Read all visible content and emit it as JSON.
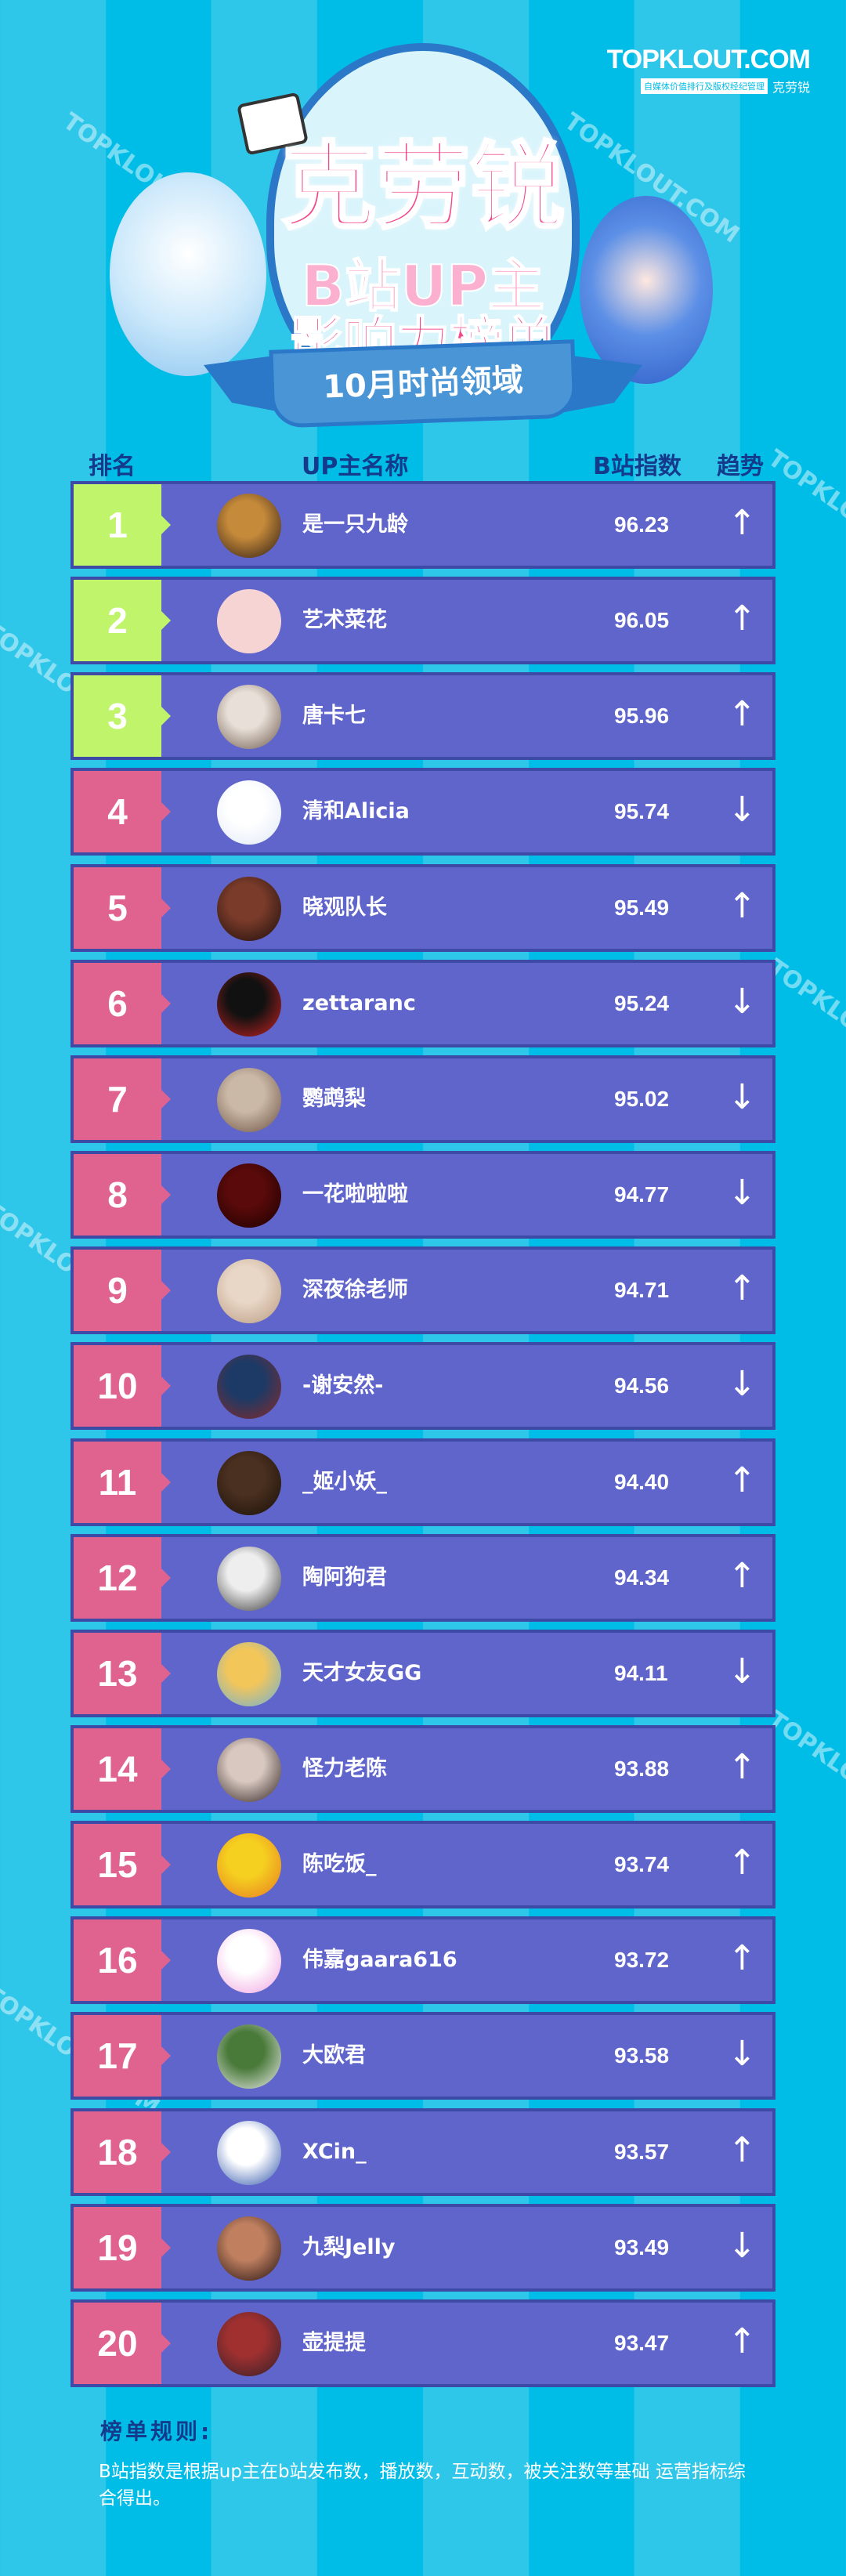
{
  "brand": {
    "logo": "TOPKLOUT.COM",
    "tagline": "自媒体价值排行及版权经纪管理",
    "name": "克劳锐"
  },
  "watermark": "TOPKLOUT.COM",
  "hero": {
    "title": "克劳锐",
    "line2": "B站UP主",
    "line3": "影响力榜单",
    "ribbon": "10月时尚领域"
  },
  "columns": {
    "rank": "排名",
    "name": "UP主名称",
    "index": "B站指数",
    "trend": "趋势"
  },
  "colors": {
    "top3": "#c0f46a",
    "other": "#e0628e",
    "row": "#6065cc",
    "border": "#3d4aa6",
    "header_text": "#143a8c"
  },
  "rows": [
    {
      "rank": "1",
      "name": "是一只九龄",
      "score": "96.23",
      "trend": "up"
    },
    {
      "rank": "2",
      "name": "艺术菜花",
      "score": "96.05",
      "trend": "up"
    },
    {
      "rank": "3",
      "name": "唐卡七",
      "score": "95.96",
      "trend": "up"
    },
    {
      "rank": "4",
      "name": "清和Alicia",
      "score": "95.74",
      "trend": "down"
    },
    {
      "rank": "5",
      "name": "晓观队长",
      "score": "95.49",
      "trend": "up"
    },
    {
      "rank": "6",
      "name": "zettaranc",
      "score": "95.24",
      "trend": "down"
    },
    {
      "rank": "7",
      "name": "鹦鹉梨",
      "score": "95.02",
      "trend": "down"
    },
    {
      "rank": "8",
      "name": "一花啦啦啦",
      "score": "94.77",
      "trend": "down"
    },
    {
      "rank": "9",
      "name": "深夜徐老师",
      "score": "94.71",
      "trend": "up"
    },
    {
      "rank": "10",
      "name": "-谢安然-",
      "score": "94.56",
      "trend": "down"
    },
    {
      "rank": "11",
      "name": "_姬小妖_",
      "score": "94.40",
      "trend": "up"
    },
    {
      "rank": "12",
      "name": "陶阿狗君",
      "score": "94.34",
      "trend": "up"
    },
    {
      "rank": "13",
      "name": "天才女友GG",
      "score": "94.11",
      "trend": "down"
    },
    {
      "rank": "14",
      "name": "怪力老陈",
      "score": "93.88",
      "trend": "up"
    },
    {
      "rank": "15",
      "name": "陈吃饭_",
      "score": "93.74",
      "trend": "up"
    },
    {
      "rank": "16",
      "name": "伟嘉gaara616",
      "score": "93.72",
      "trend": "up"
    },
    {
      "rank": "17",
      "name": "大欧君",
      "score": "93.58",
      "trend": "down"
    },
    {
      "rank": "18",
      "name": "XCin_",
      "score": "93.57",
      "trend": "up"
    },
    {
      "rank": "19",
      "name": "九梨Jelly",
      "score": "93.49",
      "trend": "down"
    },
    {
      "rank": "20",
      "name": "壶提提",
      "score": "93.47",
      "trend": "up"
    }
  ],
  "rules": {
    "title": "榜单规则:",
    "text": "B站指数是根据up主在b站发布数，播放数，互动数，被关注数等基础 运营指标综合得出。"
  }
}
